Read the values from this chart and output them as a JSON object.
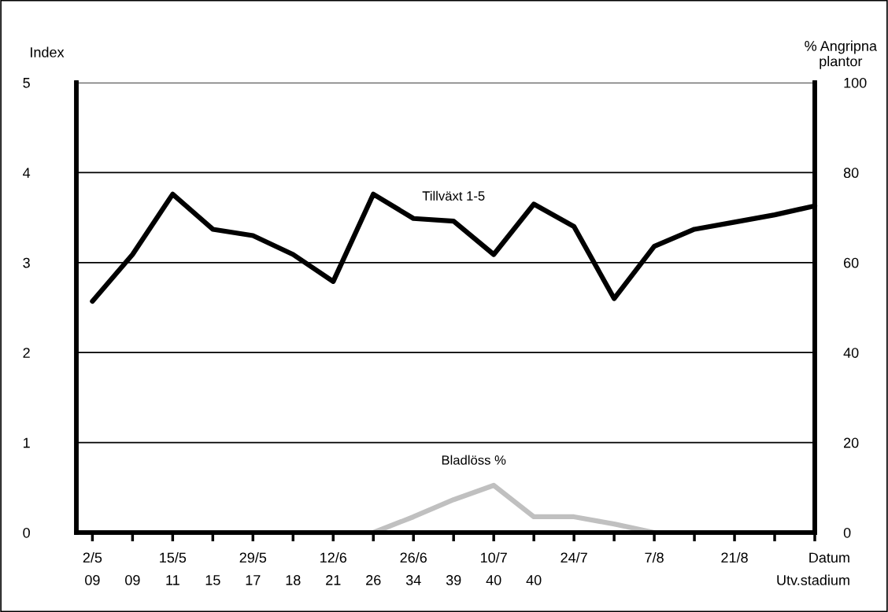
{
  "chart_data": {
    "type": "line",
    "categories": [
      "2/5\n09",
      "\n09",
      "15/5\n11",
      "\n15",
      "29/5\n17",
      "\n18",
      "12/6\n21",
      "\n26",
      "26/6\n34",
      "\n39",
      "10/7\n40",
      "\n40",
      "24/7",
      null,
      "7/8",
      null,
      "21/8",
      null,
      "Datum\nUtv.stadium"
    ],
    "series": [
      {
        "name": "Tillväxt 1-5",
        "color": "#000000",
        "values": [
          2.57,
          3.09,
          3.76,
          3.37,
          3.3,
          3.09,
          2.79,
          3.76,
          3.49,
          3.46,
          3.09,
          3.65,
          3.4,
          2.6,
          3.18,
          3.37,
          3.45,
          3.53,
          3.63
        ]
      },
      {
        "name": "Bladlöss %",
        "color": "#c0c0c0",
        "axis": "y2",
        "values": [
          null,
          null,
          null,
          null,
          null,
          0,
          0,
          0,
          3.5,
          7.3,
          10.5,
          3.5,
          3.5,
          1.9,
          0,
          null,
          null,
          null,
          null
        ]
      }
    ],
    "ylabel": "Index",
    "y2label": "% Angripna\nplantor",
    "ylim": [
      0,
      5
    ],
    "yticks": [
      0,
      1,
      2,
      3,
      4,
      5
    ],
    "y2lim": [
      0,
      100
    ],
    "y2ticks": [
      0,
      20,
      40,
      60,
      80,
      100
    ],
    "grid": "y",
    "line_style": "solid",
    "marker": "none"
  }
}
